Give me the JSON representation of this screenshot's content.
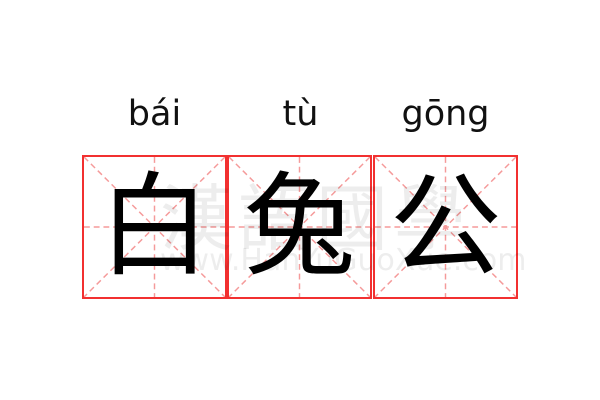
{
  "characters": [
    {
      "hanzi": "白",
      "pinyin": "bái"
    },
    {
      "hanzi": "兔",
      "pinyin": "tù"
    },
    {
      "hanzi": "公",
      "pinyin": "gōng"
    }
  ],
  "watermark": {
    "logo": "漢語國學",
    "site": "www.HanYuGuoXue.com"
  },
  "colors": {
    "grid_border": "#f23030",
    "guide_lines": "#f59a9a",
    "text": "#000000"
  }
}
